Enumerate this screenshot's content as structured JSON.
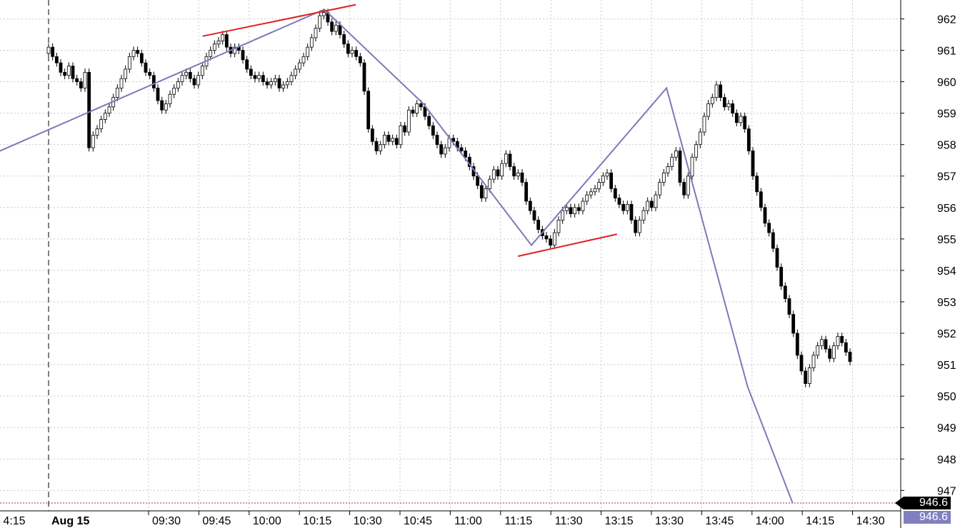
{
  "chart_data": {
    "type": "candlestick",
    "date_label": "Aug 15",
    "x_tick_labels": [
      "4:15",
      "09:30",
      "09:45",
      "10:00",
      "10:15",
      "10:30",
      "10:45",
      "11:00",
      "11:15",
      "11:30",
      "13:15",
      "13:30",
      "13:45",
      "14:00",
      "14:15",
      "14:30"
    ],
    "y_ticks": [
      962,
      961,
      960,
      959,
      958,
      957,
      956,
      955,
      954,
      953,
      952,
      951,
      950,
      949,
      948,
      947
    ],
    "ylim": [
      946.35,
      962.6
    ],
    "grid": true,
    "last_price_label": "946.6",
    "projected_price_label": "946.6",
    "last_price_line": 946.6,
    "colors": {
      "up_fill": "#ffffff",
      "down_fill": "#000000",
      "wave_line": "#7a7ab8",
      "trend_line": "#e02020",
      "price_line": "#c02020",
      "grid": "#c8c8c8"
    },
    "candles_close": [
      961.1,
      960.8,
      960.6,
      960.3,
      960.2,
      960.5,
      960.1,
      960.0,
      959.8,
      960.3,
      957.9,
      958.3,
      958.5,
      958.8,
      959.0,
      959.2,
      959.5,
      959.8,
      960.1,
      960.4,
      960.8,
      961.0,
      960.9,
      960.6,
      960.3,
      960.2,
      959.8,
      959.4,
      959.1,
      959.3,
      959.6,
      959.8,
      960.0,
      960.2,
      960.3,
      960.1,
      959.9,
      960.2,
      960.5,
      960.8,
      961.0,
      961.2,
      961.3,
      961.5,
      961.1,
      960.9,
      961.1,
      961.0,
      960.7,
      960.4,
      960.2,
      960.1,
      960.2,
      960.0,
      959.9,
      960.0,
      960.1,
      959.8,
      959.9,
      960.0,
      960.2,
      960.4,
      960.6,
      960.8,
      961.1,
      961.4,
      961.7,
      962.1,
      962.2,
      961.9,
      961.6,
      961.8,
      961.5,
      961.2,
      960.9,
      961.0,
      960.8,
      960.6,
      959.7,
      958.5,
      958.1,
      957.8,
      958.0,
      958.3,
      958.1,
      958.2,
      958.0,
      958.6,
      958.4,
      959.1,
      959.0,
      959.3,
      959.2,
      958.9,
      958.6,
      958.3,
      958.0,
      957.7,
      957.9,
      958.2,
      958.1,
      957.9,
      957.8,
      957.6,
      957.3,
      957.0,
      956.7,
      956.3,
      956.6,
      956.9,
      957.2,
      957.0,
      957.4,
      957.7,
      957.3,
      957.0,
      957.1,
      956.8,
      956.2,
      955.9,
      955.6,
      955.3,
      955.1,
      955.0,
      954.8,
      955.2,
      955.6,
      955.9,
      956.0,
      955.8,
      956.0,
      955.9,
      956.2,
      956.4,
      956.5,
      956.6,
      956.8,
      957.0,
      957.1,
      956.6,
      956.3,
      956.1,
      955.9,
      956.1,
      955.6,
      955.2,
      955.6,
      955.9,
      956.2,
      956.0,
      956.4,
      956.8,
      957.1,
      957.3,
      957.6,
      957.8,
      956.8,
      956.4,
      957.0,
      957.6,
      958.0,
      958.4,
      958.9,
      959.3,
      959.5,
      959.9,
      959.5,
      959.2,
      959.3,
      959.0,
      958.7,
      958.9,
      958.5,
      957.8,
      957.0,
      956.5,
      956.0,
      955.5,
      955.2,
      954.7,
      954.1,
      953.5,
      953.1,
      952.6,
      952.0,
      951.3,
      950.8,
      950.4,
      950.9,
      951.3,
      951.6,
      951.8,
      951.5,
      951.2,
      951.6,
      951.9,
      951.7,
      951.4,
      951.1
    ],
    "wave_points": [
      [
        -0.08,
        956.8
      ],
      [
        0.36,
        962.3
      ],
      [
        0.47,
        959.3
      ],
      [
        0.59,
        954.8
      ],
      [
        0.74,
        959.8
      ],
      [
        0.83,
        950.3
      ],
      [
        0.88,
        946.6
      ]
    ],
    "trend_lines": [
      [
        [
          0.225,
          961.45
        ],
        [
          0.395,
          962.45
        ]
      ],
      [
        [
          0.575,
          954.45
        ],
        [
          0.685,
          955.15
        ]
      ]
    ]
  }
}
